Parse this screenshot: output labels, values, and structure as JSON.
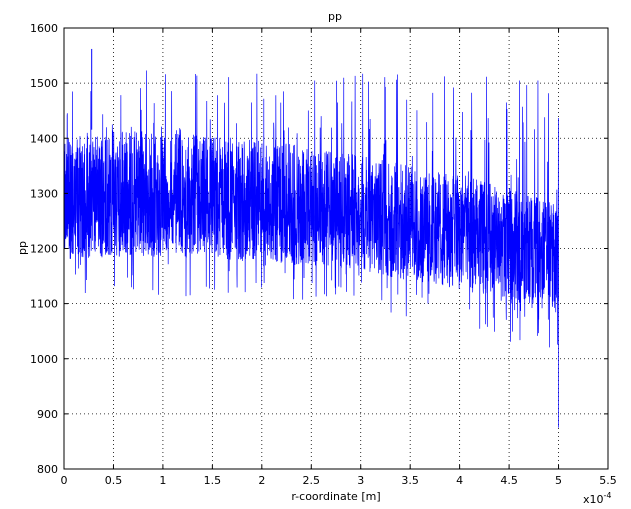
{
  "chart_data": {
    "type": "line",
    "title": "pp",
    "xlabel": "r-coordinate [m]",
    "ylabel": "pp",
    "x_multiplier": "x10",
    "x_multiplier_exponent": "-4",
    "xlim": [
      0,
      5.5
    ],
    "ylim": [
      800,
      1600
    ],
    "x_ticks": [
      "0",
      "0.5",
      "1",
      "1.5",
      "2",
      "2.5",
      "3",
      "3.5",
      "4",
      "4.5",
      "5",
      "5.5"
    ],
    "y_ticks": [
      "800",
      "900",
      "1000",
      "1100",
      "1200",
      "1300",
      "1400",
      "1500",
      "1600"
    ],
    "grid": true,
    "series_color": "#0000ff",
    "series": [
      {
        "x": [
          0,
          0.5,
          1,
          1.5,
          2,
          2.5,
          3,
          3.5,
          4,
          4.5,
          5
        ],
        "center": [
          1280,
          1280,
          1285,
          1280,
          1275,
          1270,
          1260,
          1245,
          1230,
          1215,
          1200
        ],
        "lower": [
          1180,
          1185,
          1185,
          1180,
          1175,
          1170,
          1160,
          1140,
          1125,
          1100,
          1080
        ],
        "upper": [
          1410,
          1420,
          1410,
          1405,
          1395,
          1385,
          1370,
          1350,
          1335,
          1310,
          1280
        ],
        "max_spike": 1562,
        "min_spike_at_end": 875
      }
    ]
  }
}
